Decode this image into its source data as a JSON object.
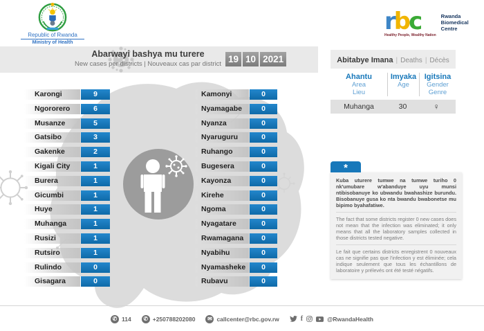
{
  "branding": {
    "gov": {
      "country": "Republic of Rwanda",
      "ministry": "Ministry of Health"
    },
    "rbc": {
      "l1": "r",
      "l2": "b",
      "l3": "c",
      "name1": "Rwanda",
      "name2": "Biomedical",
      "name3": "Centre",
      "tagline": "Healthy People, Wealthy Nation"
    }
  },
  "header": {
    "title": "Abarwayi bashya mu turere",
    "subtitle": "New cases per districts  |  Nouveaux cas par district",
    "date": {
      "day": "19",
      "month": "10",
      "year": "2021"
    }
  },
  "districts_left": [
    {
      "name": "Karongi",
      "value": 9
    },
    {
      "name": "Ngororero",
      "value": 6
    },
    {
      "name": "Musanze",
      "value": 5
    },
    {
      "name": "Gatsibo",
      "value": 3
    },
    {
      "name": "Gakenke",
      "value": 2
    },
    {
      "name": "Kigali City",
      "value": 1
    },
    {
      "name": "Burera",
      "value": 1
    },
    {
      "name": "Gicumbi",
      "value": 1
    },
    {
      "name": "Huye",
      "value": 1
    },
    {
      "name": "Muhanga",
      "value": 1
    },
    {
      "name": "Rusizi",
      "value": 1
    },
    {
      "name": "Rutsiro",
      "value": 1
    },
    {
      "name": "Rulindo",
      "value": 0
    },
    {
      "name": "Gisagara",
      "value": 0
    }
  ],
  "districts_right": [
    {
      "name": "Kamonyi",
      "value": 0
    },
    {
      "name": "Nyamagabe",
      "value": 0
    },
    {
      "name": "Nyanza",
      "value": 0
    },
    {
      "name": "Nyaruguru",
      "value": 0
    },
    {
      "name": "Ruhango",
      "value": 0
    },
    {
      "name": "Bugesera",
      "value": 0
    },
    {
      "name": "Kayonza",
      "value": 0
    },
    {
      "name": "Kirehe",
      "value": 0
    },
    {
      "name": "Ngoma",
      "value": 0
    },
    {
      "name": "Nyagatare",
      "value": 0
    },
    {
      "name": "Rwamagana",
      "value": 0
    },
    {
      "name": "Nyabihu",
      "value": 0
    },
    {
      "name": "Nyamasheke",
      "value": 0
    },
    {
      "name": "Rubavu",
      "value": 0
    }
  ],
  "deaths": {
    "title_rw": "Abitabye Imana",
    "sep": "|",
    "title_en": "Deaths",
    "title_fr": "Décès",
    "columns": [
      {
        "l1": "Ahantu",
        "l2": "Area",
        "l3": "Lieu"
      },
      {
        "l1": "Imyaka",
        "l2": "Age",
        "l3": ""
      },
      {
        "l1": "Igitsina",
        "l2": "Gender",
        "l3": "Genre"
      }
    ],
    "row": {
      "place": "Muhanga",
      "age": "30",
      "gender": "♀"
    }
  },
  "note": {
    "marker": "*",
    "rw": "Kuba uturere tumwe na tumwe turiho 0 nk'umubare w'abanduye uyu munsi ntibisobanuye ko ubwandu bwahashize burundu. Bisobanuye gusa ko nta bwandu bwabonetse mu bipimo byahafatiwe.",
    "en": "The fact that some districts register 0 new cases does not mean that the infection was eliminated; it only means that all the laboratory samples collected in those districts tested negative.",
    "fr": "Le fait que certains districts enregistrent 0 nouveaux cas ne signifie pas que l'infection y est éliminée; cela indique seulement que tous les échantillons de laboratoire y prélevés ont été testé négatifs."
  },
  "footer": {
    "hotline": "114",
    "phone": "+250788202080",
    "email": "callcenter@rbc.gov.rw",
    "social": "@RwandaHealth"
  },
  "colors": {
    "accent_blue": "#1878ba",
    "band_gray": "#e9e9e9",
    "map_gray": "#dcdcdc",
    "badge_gray": "#8d8d8d",
    "rbc_blue": "#3d85c6",
    "rbc_yellow": "#f1b500",
    "rbc_green": "#3aaa35"
  }
}
